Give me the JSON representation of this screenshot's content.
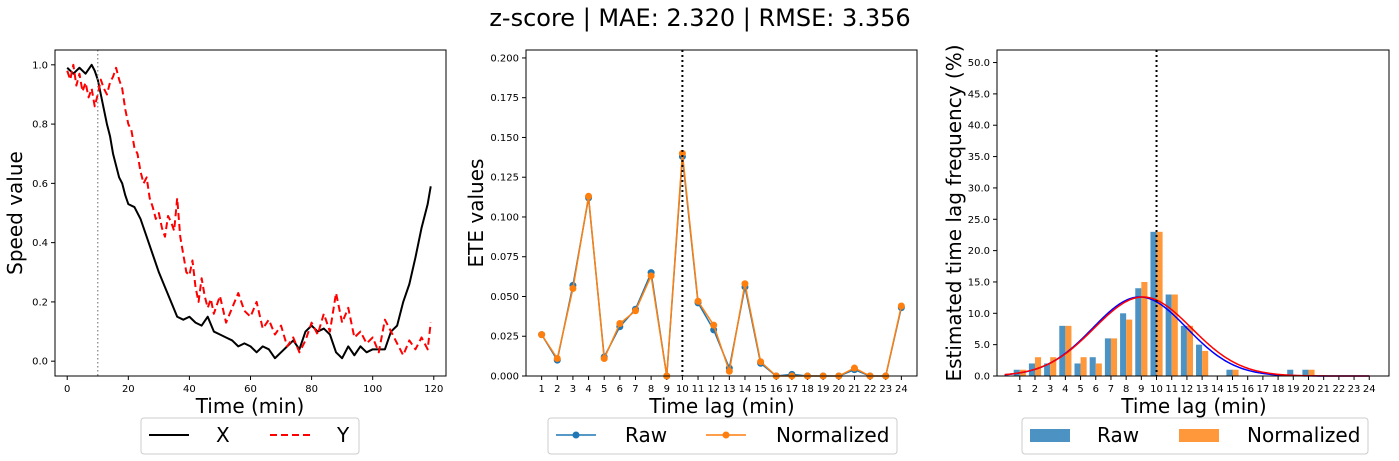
{
  "figure": {
    "title": "z-score | MAE: 2.320 | RMSE: 3.356"
  },
  "chart_data": [
    {
      "type": "line",
      "xlabel": "Time (min)",
      "ylabel": "Speed value",
      "xlim": [
        -4,
        124
      ],
      "ylim": [
        -0.05,
        1.05
      ],
      "xticks": [
        0,
        20,
        40,
        60,
        80,
        100,
        120
      ],
      "yticks": [
        0.0,
        0.2,
        0.4,
        0.6,
        0.8,
        1.0
      ],
      "ytick_labels": [
        "0.0",
        "0.2",
        "0.4",
        "0.6",
        "0.8",
        "1.0"
      ],
      "vline": {
        "x": 10,
        "color": "#808080",
        "style": "dotted"
      },
      "legend": {
        "placement": "below-center",
        "ncol": 2
      },
      "series": [
        {
          "name": "X",
          "color": "#000000",
          "style": "solid",
          "x": [
            0,
            2,
            4,
            6,
            8,
            9,
            10,
            11,
            12,
            13,
            14,
            15,
            16,
            17,
            18,
            19,
            20,
            22,
            24,
            26,
            28,
            30,
            32,
            34,
            36,
            38,
            40,
            42,
            44,
            46,
            48,
            50,
            52,
            54,
            56,
            58,
            60,
            62,
            64,
            66,
            68,
            70,
            72,
            74,
            76,
            78,
            80,
            82,
            84,
            86,
            88,
            90,
            92,
            94,
            96,
            98,
            100,
            102,
            104,
            106,
            108,
            110,
            112,
            114,
            116,
            118,
            119
          ],
          "y": [
            0.99,
            0.97,
            0.99,
            0.97,
            1.0,
            0.98,
            0.95,
            0.9,
            0.85,
            0.8,
            0.76,
            0.7,
            0.66,
            0.62,
            0.6,
            0.56,
            0.53,
            0.52,
            0.48,
            0.42,
            0.36,
            0.3,
            0.25,
            0.2,
            0.15,
            0.14,
            0.15,
            0.13,
            0.12,
            0.15,
            0.1,
            0.09,
            0.08,
            0.07,
            0.05,
            0.06,
            0.05,
            0.03,
            0.05,
            0.04,
            0.01,
            0.03,
            0.05,
            0.07,
            0.04,
            0.1,
            0.12,
            0.1,
            0.11,
            0.09,
            0.03,
            0.01,
            0.05,
            0.02,
            0.05,
            0.03,
            0.04,
            0.04,
            0.04,
            0.1,
            0.12,
            0.2,
            0.26,
            0.35,
            0.45,
            0.53,
            0.59
          ]
        },
        {
          "name": "Y",
          "color": "#ff0000",
          "style": "dashed",
          "x": [
            0,
            1,
            2,
            3,
            4,
            5,
            6,
            7,
            8,
            9,
            10,
            11,
            12,
            13,
            14,
            15,
            16,
            17,
            18,
            19,
            20,
            21,
            22,
            23,
            24,
            25,
            26,
            27,
            28,
            29,
            30,
            31,
            32,
            33,
            34,
            35,
            36,
            37,
            38,
            39,
            40,
            41,
            42,
            43,
            44,
            45,
            46,
            47,
            48,
            50,
            52,
            54,
            56,
            58,
            60,
            62,
            64,
            66,
            68,
            70,
            72,
            74,
            76,
            78,
            80,
            82,
            84,
            86,
            88,
            90,
            92,
            94,
            96,
            98,
            100,
            102,
            104,
            106,
            108,
            110,
            112,
            114,
            116,
            118,
            119
          ],
          "y": [
            0.98,
            0.95,
            1.0,
            0.93,
            0.97,
            0.91,
            0.94,
            0.89,
            0.92,
            0.86,
            0.9,
            0.95,
            0.92,
            0.9,
            0.94,
            0.96,
            0.99,
            0.95,
            0.92,
            0.85,
            0.8,
            0.78,
            0.72,
            0.7,
            0.64,
            0.6,
            0.62,
            0.55,
            0.52,
            0.48,
            0.5,
            0.45,
            0.42,
            0.49,
            0.47,
            0.44,
            0.55,
            0.42,
            0.36,
            0.3,
            0.29,
            0.34,
            0.25,
            0.2,
            0.28,
            0.22,
            0.18,
            0.21,
            0.16,
            0.22,
            0.13,
            0.18,
            0.23,
            0.17,
            0.15,
            0.2,
            0.11,
            0.14,
            0.09,
            0.12,
            0.05,
            0.08,
            0.03,
            0.07,
            0.13,
            0.09,
            0.16,
            0.1,
            0.23,
            0.13,
            0.18,
            0.08,
            0.1,
            0.06,
            0.08,
            0.03,
            0.14,
            0.1,
            0.06,
            0.02,
            0.07,
            0.04,
            0.08,
            0.04,
            0.13
          ]
        }
      ]
    },
    {
      "type": "line",
      "xlabel": "Time lag (min)",
      "ylabel": "ETE values",
      "xlim": [
        0,
        25
      ],
      "ylim": [
        0,
        0.205
      ],
      "xticks": [
        1,
        2,
        3,
        4,
        5,
        6,
        7,
        8,
        9,
        10,
        11,
        12,
        13,
        14,
        15,
        16,
        17,
        18,
        19,
        20,
        21,
        22,
        23,
        24
      ],
      "yticks": [
        0.0,
        0.025,
        0.05,
        0.075,
        0.1,
        0.125,
        0.15,
        0.175,
        0.2
      ],
      "ytick_labels": [
        "0.000",
        "0.025",
        "0.050",
        "0.075",
        "0.100",
        "0.125",
        "0.150",
        "0.175",
        "0.200"
      ],
      "vline": {
        "x": 10,
        "color": "#000000",
        "style": "dotted"
      },
      "legend": {
        "placement": "below-center",
        "ncol": 2
      },
      "series": [
        {
          "name": "Raw",
          "color": "#1f77b4",
          "marker": "circle",
          "x": [
            1,
            2,
            3,
            4,
            5,
            6,
            7,
            8,
            9,
            10,
            11,
            12,
            13,
            14,
            15,
            16,
            17,
            18,
            19,
            20,
            21,
            22,
            23,
            24
          ],
          "y": [
            0.026,
            0.01,
            0.057,
            0.112,
            0.012,
            0.031,
            0.042,
            0.065,
            0.0,
            0.138,
            0.046,
            0.029,
            0.005,
            0.056,
            0.008,
            0.0,
            0.001,
            0.0,
            0.0,
            0.0,
            0.004,
            0.0,
            0.0,
            0.043
          ]
        },
        {
          "name": "Normalized",
          "color": "#ff7f0e",
          "marker": "circle",
          "x": [
            1,
            2,
            3,
            4,
            5,
            6,
            7,
            8,
            9,
            10,
            11,
            12,
            13,
            14,
            15,
            16,
            17,
            18,
            19,
            20,
            21,
            22,
            23,
            24
          ],
          "y": [
            0.026,
            0.011,
            0.055,
            0.113,
            0.011,
            0.033,
            0.041,
            0.063,
            0.0,
            0.14,
            0.047,
            0.032,
            0.003,
            0.058,
            0.009,
            0.0,
            0.0,
            0.0,
            0.0,
            0.0,
            0.005,
            0.0,
            0.0,
            0.044
          ]
        }
      ]
    },
    {
      "type": "bar",
      "xlabel": "Time lag (min)",
      "ylabel": "Estimated time lag frequency (%)",
      "xlim": [
        -0.5,
        25.3
      ],
      "ylim": [
        0,
        52
      ],
      "xticks": [
        1,
        2,
        3,
        4,
        5,
        6,
        7,
        8,
        9,
        10,
        11,
        12,
        13,
        14,
        15,
        16,
        17,
        18,
        19,
        20,
        21,
        22,
        23,
        24
      ],
      "yticks": [
        0,
        5,
        10,
        15,
        20,
        25,
        30,
        35,
        40,
        45,
        50
      ],
      "ytick_labels": [
        "0.0",
        "5.0",
        "10.0",
        "15.0",
        "20.0",
        "25.0",
        "30.0",
        "35.0",
        "40.0",
        "45.0",
        "50.0"
      ],
      "vline": {
        "x": 10,
        "color": "#000000",
        "style": "dotted"
      },
      "legend": {
        "placement": "below-center",
        "ncol": 2
      },
      "categories": [
        1,
        2,
        3,
        4,
        5,
        6,
        7,
        8,
        9,
        10,
        11,
        12,
        13,
        14,
        15,
        16,
        17,
        18,
        19,
        20,
        21,
        22,
        23,
        24
      ],
      "series": [
        {
          "name": "Raw",
          "color": "#4c93c4",
          "values": [
            1,
            2,
            2,
            8,
            2,
            3,
            6,
            10,
            14,
            23,
            13,
            8,
            5,
            0,
            1,
            0,
            0,
            0,
            1,
            1,
            0,
            0,
            0,
            0
          ]
        },
        {
          "name": "Normalized",
          "color": "#ff983a",
          "values": [
            1,
            3,
            3,
            8,
            3,
            2,
            6,
            9,
            15,
            23,
            13,
            8,
            4,
            0,
            1,
            0,
            0,
            0,
            0,
            1,
            0,
            0,
            0,
            0
          ]
        }
      ],
      "fit_curves": [
        {
          "color": "#0000ff",
          "mean": 8.9,
          "sd": 3.1,
          "peak": 12.6,
          "range": [
            0,
            24
          ]
        },
        {
          "color": "#ff0000",
          "mean": 9.1,
          "sd": 3.2,
          "peak": 12.6,
          "range": [
            0,
            24
          ]
        }
      ]
    }
  ]
}
